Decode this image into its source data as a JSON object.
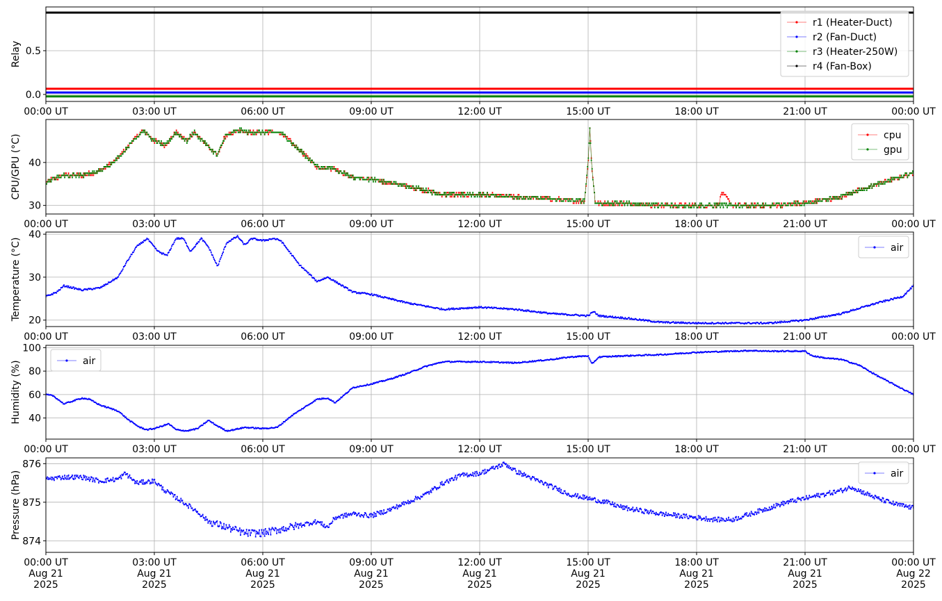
{
  "chart_data": [
    {
      "type": "line",
      "ylabel": "Relay",
      "ylim": [
        -0.08,
        1.0
      ],
      "yticks": [
        0.0,
        0.5
      ],
      "ytick_labels": [
        "0.0",
        "0.5"
      ],
      "grid": true,
      "legend_placement": "top-right",
      "x_tick_labels": [
        "00:00 UT",
        "03:00 UT",
        "06:00 UT",
        "09:00 UT",
        "12:00 UT",
        "15:00 UT",
        "18:00 UT",
        "21:00 UT",
        "00:00 UT"
      ],
      "x_hours": [
        0,
        24
      ],
      "series": [
        {
          "name": "r1 (Heater-Duct)",
          "color": "#ff0000",
          "x": [
            0,
            24
          ],
          "y": [
            0.065,
            0.065
          ]
        },
        {
          "name": "r2 (Fan-Duct)",
          "color": "#0000ff",
          "x": [
            0,
            24
          ],
          "y": [
            0.022,
            0.022
          ]
        },
        {
          "name": "r3 (Heater-250W)",
          "color": "#008000",
          "x": [
            0,
            24
          ],
          "y": [
            -0.022,
            -0.022
          ]
        },
        {
          "name": "r4 (Fan-Box)",
          "color": "#000000",
          "x": [
            0,
            24
          ],
          "y": [
            0.935,
            0.935
          ]
        }
      ]
    },
    {
      "type": "line",
      "ylabel": "CPU/GPU (°C)",
      "ylim": [
        28,
        50
      ],
      "yticks": [
        30,
        40
      ],
      "ytick_labels": [
        "30",
        "40"
      ],
      "grid": true,
      "legend_placement": "top-right",
      "x_tick_labels": [
        "00:00 UT",
        "03:00 UT",
        "06:00 UT",
        "09:00 UT",
        "12:00 UT",
        "15:00 UT",
        "18:00 UT",
        "21:00 UT",
        "00:00 UT"
      ],
      "x_hours": [
        0,
        24
      ],
      "series": [
        {
          "name": "cpu",
          "color": "#ff0000",
          "x": [
            0,
            0.5,
            1.0,
            1.5,
            2.0,
            2.4,
            2.7,
            3.0,
            3.3,
            3.6,
            3.9,
            4.1,
            4.4,
            4.75,
            4.95,
            5.3,
            5.6,
            6.0,
            6.5,
            7.0,
            7.5,
            8.0,
            8.5,
            9.0,
            10.0,
            11.0,
            12.0,
            13.0,
            14.0,
            14.9,
            15.0,
            15.05,
            15.1,
            15.2,
            16.0,
            17.0,
            18.0,
            18.6,
            18.7,
            19.0,
            20.0,
            21.0,
            22.0,
            23.0,
            24.0
          ],
          "y": [
            35.5,
            37,
            37,
            38,
            41,
            45,
            47.5,
            45,
            44,
            47,
            45,
            47,
            44.5,
            41.5,
            46,
            47.5,
            47,
            47,
            47,
            43,
            39,
            38.5,
            36.5,
            36,
            34.5,
            32.5,
            32.5,
            32,
            31.5,
            31,
            40,
            48.5,
            39,
            30.5,
            30.5,
            30,
            30,
            30,
            33,
            30,
            30,
            30.5,
            32,
            35,
            37.5
          ]
        },
        {
          "name": "gpu",
          "color": "#008000",
          "x": [
            0,
            0.5,
            1.0,
            1.5,
            2.0,
            2.4,
            2.7,
            3.0,
            3.3,
            3.6,
            3.9,
            4.1,
            4.4,
            4.75,
            4.95,
            5.3,
            5.6,
            6.0,
            6.5,
            7.0,
            7.5,
            8.0,
            8.5,
            9.0,
            10.0,
            11.0,
            12.0,
            13.0,
            14.0,
            14.9,
            15.0,
            15.05,
            15.1,
            15.2,
            16.0,
            17.0,
            18.0,
            19.0,
            20.0,
            21.0,
            22.0,
            23.0,
            24.0
          ],
          "y": [
            35.5,
            37,
            37,
            38,
            41,
            45,
            47.5,
            45,
            44,
            47,
            45,
            47,
            44.5,
            41.5,
            46,
            47.5,
            47,
            47,
            47,
            43,
            39,
            38.5,
            36.5,
            36,
            34.5,
            32.5,
            32.5,
            32,
            31.5,
            31,
            40,
            48.5,
            39,
            30.5,
            30.5,
            30,
            30,
            30,
            30,
            30.5,
            32,
            35,
            37.5
          ]
        }
      ]
    },
    {
      "type": "line",
      "ylabel": "Temperature (°C)",
      "ylim": [
        18.5,
        40.5
      ],
      "yticks": [
        20,
        30,
        40
      ],
      "ytick_labels": [
        "20",
        "30",
        "40"
      ],
      "grid": true,
      "legend_placement": "top-right",
      "x_tick_labels": [
        "00:00 UT",
        "03:00 UT",
        "06:00 UT",
        "09:00 UT",
        "12:00 UT",
        "15:00 UT",
        "18:00 UT",
        "21:00 UT",
        "00:00 UT"
      ],
      "x_hours": [
        0,
        24
      ],
      "series": [
        {
          "name": "air",
          "color": "#0000ff",
          "x": [
            0,
            0.3,
            0.5,
            1.0,
            1.5,
            2.0,
            2.2,
            2.5,
            2.8,
            3.1,
            3.35,
            3.6,
            3.8,
            4.0,
            4.3,
            4.5,
            4.75,
            5.0,
            5.3,
            5.5,
            5.7,
            6.0,
            6.3,
            6.5,
            7.0,
            7.5,
            7.8,
            8.0,
            8.5,
            9.0,
            10.0,
            11.0,
            12.0,
            13.0,
            14.0,
            15.0,
            15.15,
            15.3,
            16.0,
            17.0,
            18.0,
            19.0,
            20.0,
            21.0,
            22.0,
            23.0,
            23.7,
            24.0
          ],
          "y": [
            25.5,
            26.5,
            28,
            27,
            27.5,
            30,
            33,
            37,
            39,
            36,
            35,
            39,
            39,
            36,
            39,
            37,
            32.5,
            38,
            39.5,
            37.5,
            39,
            38.5,
            39,
            38.5,
            33,
            29,
            30,
            29,
            26.5,
            26,
            24,
            22.5,
            23,
            22.5,
            21.5,
            21,
            22,
            21,
            20.5,
            19.5,
            19.3,
            19.3,
            19.3,
            20,
            21.5,
            24,
            25.5,
            28
          ]
        }
      ]
    },
    {
      "type": "line",
      "ylabel": "Humidity (%)",
      "ylim": [
        22,
        102
      ],
      "yticks": [
        40,
        60,
        80,
        100
      ],
      "ytick_labels": [
        "40",
        "60",
        "80",
        "100"
      ],
      "grid": true,
      "legend_placement": "top-left",
      "x_tick_labels": [
        "00:00 UT",
        "03:00 UT",
        "06:00 UT",
        "09:00 UT",
        "12:00 UT",
        "15:00 UT",
        "18:00 UT",
        "21:00 UT",
        "00:00 UT"
      ],
      "x_hours": [
        0,
        24
      ],
      "series": [
        {
          "name": "air",
          "color": "#0000ff",
          "x": [
            0,
            0.2,
            0.5,
            0.8,
            1.0,
            1.2,
            1.5,
            2.0,
            2.3,
            2.6,
            2.8,
            3.0,
            3.2,
            3.4,
            3.6,
            3.9,
            4.2,
            4.5,
            4.7,
            5.0,
            5.2,
            5.5,
            6.0,
            6.4,
            6.8,
            7.2,
            7.5,
            7.8,
            8.0,
            8.5,
            9.0,
            9.5,
            10.0,
            10.5,
            11.0,
            12.0,
            13.0,
            14.0,
            14.5,
            15.0,
            15.1,
            15.3,
            16.0,
            17.0,
            18.0,
            19.0,
            19.5,
            20.0,
            20.8,
            21.0,
            21.2,
            21.6,
            22.0,
            22.5,
            23.0,
            23.5,
            24.0
          ],
          "y": [
            60,
            59,
            52,
            55,
            57,
            56,
            51,
            46,
            38,
            32,
            30,
            31,
            33,
            35,
            30,
            29,
            31,
            38,
            34,
            29,
            30,
            32,
            31,
            32,
            42,
            50,
            56,
            57,
            53,
            66,
            69,
            73,
            78,
            84,
            88,
            88,
            87,
            90,
            92,
            93,
            86,
            92,
            93,
            94,
            96,
            97,
            97.5,
            97,
            97,
            97,
            93,
            91,
            90,
            85,
            76,
            68,
            60
          ]
        }
      ]
    },
    {
      "type": "line",
      "ylabel": "Pressure (hPa)",
      "ylim": [
        873.7,
        876.15
      ],
      "yticks": [
        874,
        875,
        876
      ],
      "ytick_labels": [
        "874",
        "875",
        "876"
      ],
      "grid": true,
      "legend_placement": "top-right",
      "x_tick_labels": [
        "00:00 UT\nAug 21\n2025",
        "03:00 UT\nAug 21\n2025",
        "06:00 UT\nAug 21\n2025",
        "09:00 UT\nAug 21\n2025",
        "12:00 UT\nAug 21\n2025",
        "15:00 UT\nAug 21\n2025",
        "18:00 UT\nAug 21\n2025",
        "21:00 UT\nAug 21\n2025",
        "00:00 UT\nAug 22\n2025"
      ],
      "x_hours": [
        0,
        24
      ],
      "series": [
        {
          "name": "air",
          "color": "#0000ff",
          "x": [
            0,
            0.5,
            1.0,
            1.5,
            2.0,
            2.2,
            2.5,
            3.0,
            3.3,
            3.8,
            4.2,
            4.5,
            5.0,
            5.5,
            6.0,
            6.5,
            7.0,
            7.5,
            7.8,
            8.0,
            8.5,
            9.0,
            9.5,
            10.0,
            10.5,
            11.0,
            11.5,
            12.0,
            12.3,
            12.7,
            13.0,
            13.5,
            14.0,
            14.5,
            15.0,
            15.5,
            16.0,
            17.0,
            18.0,
            18.5,
            19.0,
            19.5,
            20.0,
            20.5,
            21.0,
            21.5,
            22.0,
            22.3,
            22.5,
            23.0,
            23.5,
            24.0
          ],
          "y": [
            875.6,
            875.65,
            875.65,
            875.55,
            875.6,
            875.75,
            875.5,
            875.55,
            875.3,
            875.0,
            874.75,
            874.5,
            874.35,
            874.2,
            874.2,
            874.3,
            874.4,
            874.5,
            874.35,
            874.6,
            874.7,
            874.65,
            874.8,
            875.0,
            875.2,
            875.5,
            875.7,
            875.75,
            875.85,
            876.0,
            875.8,
            875.6,
            875.4,
            875.2,
            875.1,
            875.0,
            874.85,
            874.7,
            874.6,
            874.55,
            874.55,
            874.7,
            874.85,
            875.0,
            875.1,
            875.2,
            875.3,
            875.4,
            875.3,
            875.1,
            874.95,
            874.85
          ]
        }
      ]
    }
  ]
}
